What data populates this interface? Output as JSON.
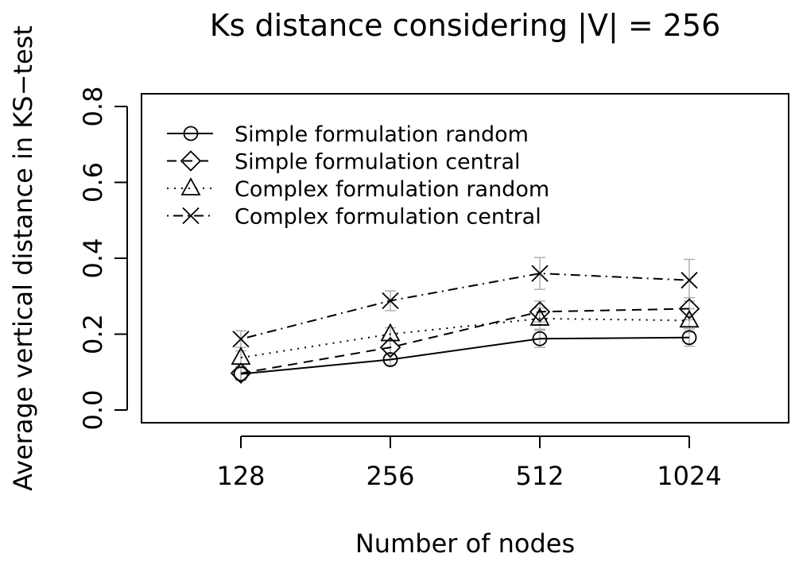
{
  "chart_data": {
    "type": "line",
    "title": "Ks distance considering |V| = 256",
    "xlabel": "Number of nodes",
    "ylabel": "Average vertical distance in KS−test",
    "categories": [
      "128",
      "256",
      "512",
      "1024"
    ],
    "ylim": [
      0.0,
      0.8
    ],
    "yticks": [
      "0.0",
      "0.2",
      "0.4",
      "0.6",
      "0.8"
    ],
    "grid": false,
    "legend_position": "top-left",
    "series": [
      {
        "name": "Simple formulation random",
        "marker": "circle",
        "line_style": "solid",
        "values": [
          0.095,
          0.133,
          0.188,
          0.191
        ],
        "error_low": [
          0.078,
          0.118,
          0.165,
          0.168
        ],
        "error_high": [
          0.112,
          0.148,
          0.21,
          0.214
        ]
      },
      {
        "name": "Simple formulation central",
        "marker": "diamond",
        "line_style": "dashed",
        "values": [
          0.097,
          0.165,
          0.259,
          0.267
        ],
        "error_low": [
          0.08,
          0.148,
          0.232,
          0.238
        ],
        "error_high": [
          0.114,
          0.182,
          0.287,
          0.296
        ]
      },
      {
        "name": "Complex formulation random",
        "marker": "triangle",
        "line_style": "dotted",
        "values": [
          0.138,
          0.2,
          0.241,
          0.236
        ],
        "error_low": [
          0.12,
          0.183,
          0.213,
          0.205
        ],
        "error_high": [
          0.156,
          0.217,
          0.269,
          0.267
        ]
      },
      {
        "name": "Complex formulation central",
        "marker": "cross",
        "line_style": "dashdot",
        "values": [
          0.187,
          0.288,
          0.36,
          0.342
        ],
        "error_low": [
          0.165,
          0.262,
          0.318,
          0.287
        ],
        "error_high": [
          0.209,
          0.314,
          0.402,
          0.397
        ]
      }
    ]
  },
  "colors": {
    "ink": "#000000",
    "error_bar": "#b0b0b0",
    "background": "#ffffff"
  }
}
